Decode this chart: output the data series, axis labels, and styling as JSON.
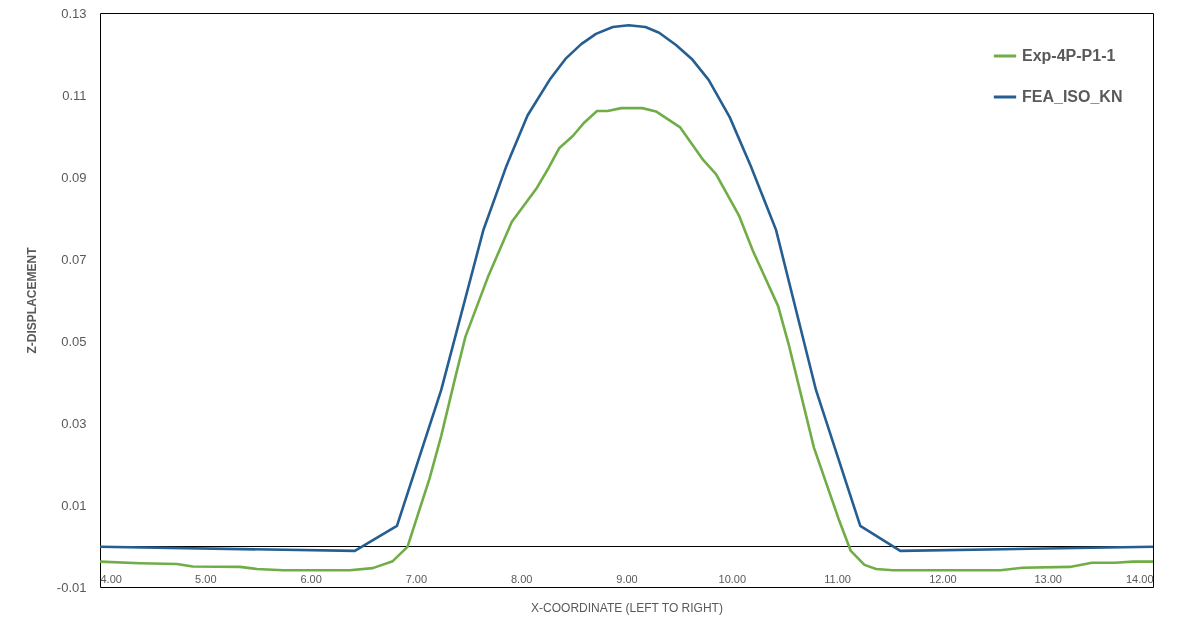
{
  "chart_data": {
    "type": "line",
    "xlabel": "X-COORDINATE (LEFT TO RIGHT)",
    "ylabel": "Z-DISPLACEMENT",
    "xlim": [
      4,
      14
    ],
    "ylim": [
      -0.01,
      0.13
    ],
    "xticks": [
      {
        "value": 4,
        "label": "4.00"
      },
      {
        "value": 5,
        "label": "5.00"
      },
      {
        "value": 6,
        "label": "6.00"
      },
      {
        "value": 7,
        "label": "7.00"
      },
      {
        "value": 8,
        "label": "8.00"
      },
      {
        "value": 9,
        "label": "9.00"
      },
      {
        "value": 10,
        "label": "10.00"
      },
      {
        "value": 11,
        "label": "11.00"
      },
      {
        "value": 12,
        "label": "12.00"
      },
      {
        "value": 13,
        "label": "13.00"
      },
      {
        "value": 14,
        "label": "14.00"
      }
    ],
    "yticks": [
      -0.01,
      0.01,
      0.03,
      0.05,
      0.07,
      0.09,
      0.11,
      0.13
    ],
    "grid": false,
    "legend": "top right",
    "marker": "none",
    "line_style": "solid",
    "series": [
      {
        "name": "Exp-4P-P1-1",
        "color": "#70ad47",
        "x": [
          4.0,
          4.38,
          4.73,
          4.88,
          5.33,
          5.49,
          5.74,
          6.37,
          6.59,
          6.78,
          6.92,
          7.13,
          7.24,
          7.37,
          7.47,
          7.69,
          7.91,
          8.15,
          8.26,
          8.36,
          8.49,
          8.6,
          8.72,
          8.82,
          8.95,
          9.15,
          9.28,
          9.51,
          9.73,
          9.85,
          10.07,
          10.2,
          10.44,
          10.54,
          10.78,
          11.02,
          11.13,
          11.26,
          11.37,
          11.53,
          12.55,
          12.76,
          13.21,
          13.42,
          13.64,
          13.81,
          14.0
        ],
        "values": [
          -0.0038,
          -0.0042,
          -0.0044,
          -0.005,
          -0.0051,
          -0.0056,
          -0.0059,
          -0.0059,
          -0.0054,
          -0.0037,
          -0.0002,
          0.0165,
          0.0268,
          0.0407,
          0.051,
          0.066,
          0.079,
          0.0874,
          0.0922,
          0.097,
          0.1,
          0.1033,
          0.1061,
          0.1061,
          0.1068,
          0.1068,
          0.106,
          0.1021,
          0.0941,
          0.0907,
          0.0805,
          0.072,
          0.0585,
          0.0492,
          0.024,
          0.0062,
          -0.0012,
          -0.0046,
          -0.0056,
          -0.0059,
          -0.0059,
          -0.0053,
          -0.0051,
          -0.0041,
          -0.0041,
          -0.0038,
          -0.0038
        ]
      },
      {
        "name": "FEA_ISO_KN",
        "color": "#255e91",
        "x": [
          4.0,
          6.42,
          6.82,
          7.24,
          7.64,
          7.86,
          8.06,
          8.27,
          8.42,
          8.57,
          8.71,
          8.87,
          9.02,
          9.18,
          9.31,
          9.47,
          9.62,
          9.78,
          9.98,
          10.18,
          10.42,
          10.8,
          11.22,
          11.6,
          14.0
        ],
        "values": [
          -0.0002,
          -0.0012,
          0.0049,
          0.038,
          0.077,
          0.0927,
          0.105,
          0.1137,
          0.1188,
          0.1224,
          0.1249,
          0.1266,
          0.127,
          0.1266,
          0.1252,
          0.1222,
          0.1188,
          0.1137,
          0.1046,
          0.0927,
          0.0771,
          0.038,
          0.0049,
          -0.0012,
          -0.0002
        ]
      }
    ]
  }
}
